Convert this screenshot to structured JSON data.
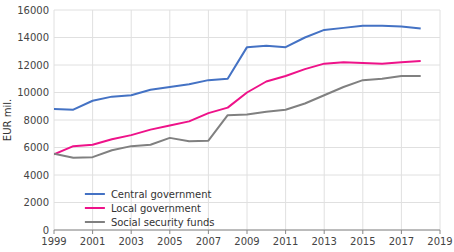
{
  "chart_data": {
    "type": "line",
    "ylabel": "EUR mil.",
    "x": [
      1999,
      2000,
      2001,
      2002,
      2003,
      2004,
      2005,
      2006,
      2007,
      2008,
      2009,
      2010,
      2011,
      2012,
      2013,
      2014,
      2015,
      2016,
      2017,
      2018
    ],
    "xlim": [
      1999,
      2019
    ],
    "ylim": [
      0,
      16000
    ],
    "xticks": [
      1999,
      2001,
      2003,
      2005,
      2007,
      2009,
      2011,
      2013,
      2015,
      2017,
      2019
    ],
    "yticks": [
      0,
      2000,
      4000,
      6000,
      8000,
      10000,
      12000,
      14000,
      16000
    ],
    "grid": true,
    "legend": "lower left",
    "series": [
      {
        "name": "Central government",
        "color": "#4472C4",
        "values": [
          8800,
          8750,
          9400,
          9700,
          9800,
          10200,
          10400,
          10600,
          10900,
          11000,
          13300,
          13400,
          13300,
          14000,
          14550,
          14700,
          14850,
          14850,
          14800,
          14650
        ]
      },
      {
        "name": "Local government",
        "color": "#EE1289",
        "values": [
          5500,
          6100,
          6200,
          6600,
          6900,
          7300,
          7600,
          7900,
          8500,
          8900,
          10000,
          10800,
          11200,
          11700,
          12100,
          12200,
          12150,
          12100,
          12200,
          12300
        ]
      },
      {
        "name": "Social security funds",
        "color": "#808080",
        "values": [
          5550,
          5250,
          5300,
          5800,
          6100,
          6200,
          6700,
          6450,
          6500,
          8350,
          8400,
          8600,
          8750,
          9200,
          9800,
          10400,
          10900,
          11000,
          11200,
          11200
        ]
      }
    ]
  }
}
